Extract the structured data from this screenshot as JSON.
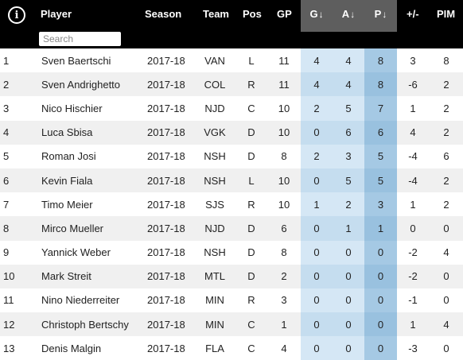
{
  "header": {
    "info_icon_glyph": "i",
    "player": "Player",
    "season": "Season",
    "team": "Team",
    "pos": "Pos",
    "gp": "GP",
    "g": "G",
    "a": "A",
    "p": "P",
    "sort_arrow": "↓",
    "plus_minus": "+/-",
    "pim": "PIM"
  },
  "search": {
    "placeholder": "Search",
    "value": ""
  },
  "colors": {
    "header_bg": "#000000",
    "sorted_header_bg": "#5e5e5e",
    "row_alt_bg": "#f0f0f0",
    "ga_col_bg": "#d5e7f5",
    "p_col_bg": "#a5c9e4"
  },
  "rows": [
    {
      "rank": "1",
      "player": "Sven Baertschi",
      "season": "2017-18",
      "team": "VAN",
      "pos": "L",
      "gp": "11",
      "g": "4",
      "a": "4",
      "p": "8",
      "pm": "3",
      "pim": "8"
    },
    {
      "rank": "2",
      "player": "Sven Andrighetto",
      "season": "2017-18",
      "team": "COL",
      "pos": "R",
      "gp": "11",
      "g": "4",
      "a": "4",
      "p": "8",
      "pm": "-6",
      "pim": "2"
    },
    {
      "rank": "3",
      "player": "Nico Hischier",
      "season": "2017-18",
      "team": "NJD",
      "pos": "C",
      "gp": "10",
      "g": "2",
      "a": "5",
      "p": "7",
      "pm": "1",
      "pim": "2"
    },
    {
      "rank": "4",
      "player": "Luca Sbisa",
      "season": "2017-18",
      "team": "VGK",
      "pos": "D",
      "gp": "10",
      "g": "0",
      "a": "6",
      "p": "6",
      "pm": "4",
      "pim": "2"
    },
    {
      "rank": "5",
      "player": "Roman Josi",
      "season": "2017-18",
      "team": "NSH",
      "pos": "D",
      "gp": "8",
      "g": "2",
      "a": "3",
      "p": "5",
      "pm": "-4",
      "pim": "6"
    },
    {
      "rank": "6",
      "player": "Kevin Fiala",
      "season": "2017-18",
      "team": "NSH",
      "pos": "L",
      "gp": "10",
      "g": "0",
      "a": "5",
      "p": "5",
      "pm": "-4",
      "pim": "2"
    },
    {
      "rank": "7",
      "player": "Timo Meier",
      "season": "2017-18",
      "team": "SJS",
      "pos": "R",
      "gp": "10",
      "g": "1",
      "a": "2",
      "p": "3",
      "pm": "1",
      "pim": "2"
    },
    {
      "rank": "8",
      "player": "Mirco Mueller",
      "season": "2017-18",
      "team": "NJD",
      "pos": "D",
      "gp": "6",
      "g": "0",
      "a": "1",
      "p": "1",
      "pm": "0",
      "pim": "0"
    },
    {
      "rank": "9",
      "player": "Yannick Weber",
      "season": "2017-18",
      "team": "NSH",
      "pos": "D",
      "gp": "8",
      "g": "0",
      "a": "0",
      "p": "0",
      "pm": "-2",
      "pim": "4"
    },
    {
      "rank": "10",
      "player": "Mark Streit",
      "season": "2017-18",
      "team": "MTL",
      "pos": "D",
      "gp": "2",
      "g": "0",
      "a": "0",
      "p": "0",
      "pm": "-2",
      "pim": "0"
    },
    {
      "rank": "11",
      "player": "Nino Niederreiter",
      "season": "2017-18",
      "team": "MIN",
      "pos": "R",
      "gp": "3",
      "g": "0",
      "a": "0",
      "p": "0",
      "pm": "-1",
      "pim": "0"
    },
    {
      "rank": "12",
      "player": "Christoph Bertschy",
      "season": "2017-18",
      "team": "MIN",
      "pos": "C",
      "gp": "1",
      "g": "0",
      "a": "0",
      "p": "0",
      "pm": "1",
      "pim": "4"
    },
    {
      "rank": "13",
      "player": "Denis Malgin",
      "season": "2017-18",
      "team": "FLA",
      "pos": "C",
      "gp": "4",
      "g": "0",
      "a": "0",
      "p": "0",
      "pm": "-3",
      "pim": "0"
    }
  ]
}
